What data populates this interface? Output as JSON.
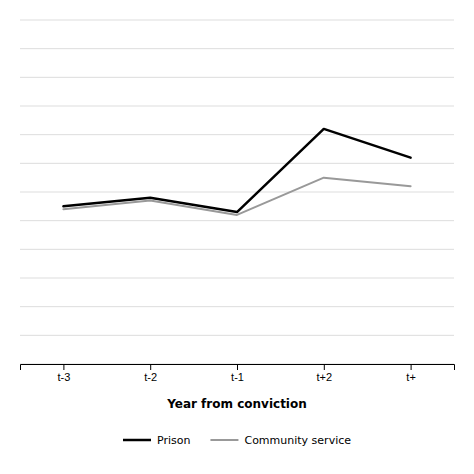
{
  "chart_data": {
    "type": "line",
    "xlabel": "Year from conviction",
    "categories": [
      "t-3",
      "t-2",
      "t-1",
      "t+2",
      "t+"
    ],
    "series": [
      {
        "name": "Prison",
        "color": "#000000",
        "values": [
          5.5,
          5.8,
          5.3,
          8.2,
          7.2
        ]
      },
      {
        "name": "Community service",
        "color": "#999999",
        "values": [
          5.4,
          5.7,
          5.2,
          6.5,
          6.2
        ]
      }
    ],
    "ylim": [
      0.0,
      12.0
    ],
    "yticks": [
      0,
      1,
      2,
      3,
      4,
      5,
      6,
      7,
      8,
      9,
      10,
      11,
      12
    ],
    "grid": true,
    "legend": "bottom",
    "tick_labels": "x"
  }
}
